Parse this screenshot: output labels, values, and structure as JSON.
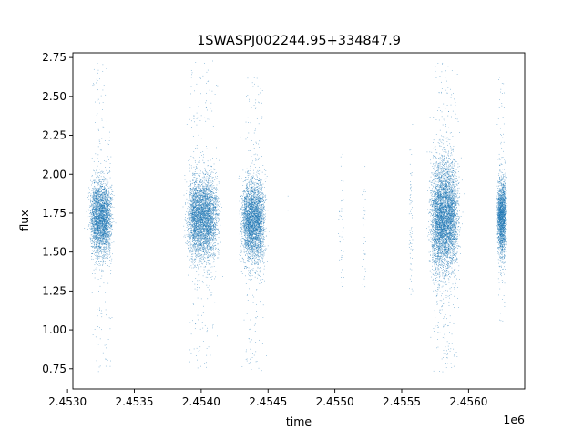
{
  "chart_data": {
    "type": "scatter",
    "title": "1SWASPJ002244.95+334847.9",
    "xlabel": "time",
    "ylabel": "flux",
    "x_offset_label": "1e6",
    "xlim": [
      2.45304,
      2.45642
    ],
    "ylim": [
      0.62,
      2.78
    ],
    "x_ticks": [
      {
        "value": 2.453,
        "label": "2.4530"
      },
      {
        "value": 2.4535,
        "label": "2.4535"
      },
      {
        "value": 2.454,
        "label": "2.4540"
      },
      {
        "value": 2.4545,
        "label": "2.4545"
      },
      {
        "value": 2.455,
        "label": "2.4550"
      },
      {
        "value": 2.4555,
        "label": "2.4555"
      },
      {
        "value": 2.456,
        "label": "2.4560"
      }
    ],
    "y_ticks": [
      {
        "value": 0.75,
        "label": "0.75"
      },
      {
        "value": 1.0,
        "label": "1.00"
      },
      {
        "value": 1.25,
        "label": "1.25"
      },
      {
        "value": 1.5,
        "label": "1.50"
      },
      {
        "value": 1.75,
        "label": "1.75"
      },
      {
        "value": 2.0,
        "label": "2.00"
      },
      {
        "value": 2.25,
        "label": "2.25"
      },
      {
        "value": 2.5,
        "label": "2.50"
      },
      {
        "value": 2.75,
        "label": "2.75"
      }
    ],
    "grid": false,
    "marker_color": "#1f77b4",
    "series": [
      {
        "clusters": [
          {
            "x_center": 2.45325,
            "x_width": 0.00012,
            "y_center": 1.72,
            "y_spread": 0.12,
            "y_min": 0.73,
            "y_max": 2.73,
            "n": 3200
          },
          {
            "x_center": 2.45401,
            "x_width": 0.00017,
            "y_center": 1.72,
            "y_spread": 0.13,
            "y_min": 0.75,
            "y_max": 2.73,
            "n": 4200
          },
          {
            "x_center": 2.45439,
            "x_width": 0.00013,
            "y_center": 1.7,
            "y_spread": 0.13,
            "y_min": 0.72,
            "y_max": 2.63,
            "n": 3500
          },
          {
            "x_center": 2.45465,
            "x_width": 5e-06,
            "y_center": 1.75,
            "y_spread": 0.08,
            "y_min": 1.7,
            "y_max": 1.9,
            "n": 4
          },
          {
            "x_center": 2.45505,
            "x_width": 3e-05,
            "y_center": 1.62,
            "y_spread": 0.22,
            "y_min": 1.05,
            "y_max": 2.2,
            "n": 45
          },
          {
            "x_center": 2.45522,
            "x_width": 2e-05,
            "y_center": 1.62,
            "y_spread": 0.25,
            "y_min": 1.12,
            "y_max": 2.13,
            "n": 40
          },
          {
            "x_center": 2.45557,
            "x_width": 2e-05,
            "y_center": 1.7,
            "y_spread": 0.3,
            "y_min": 1.1,
            "y_max": 2.38,
            "n": 70
          },
          {
            "x_center": 2.45582,
            "x_width": 0.00015,
            "y_center": 1.72,
            "y_spread": 0.17,
            "y_min": 0.73,
            "y_max": 2.73,
            "n": 5200
          },
          {
            "x_center": 2.45625,
            "x_width": 5e-05,
            "y_center": 1.72,
            "y_spread": 0.12,
            "y_min": 1.05,
            "y_max": 2.66,
            "n": 2000
          }
        ]
      }
    ]
  }
}
